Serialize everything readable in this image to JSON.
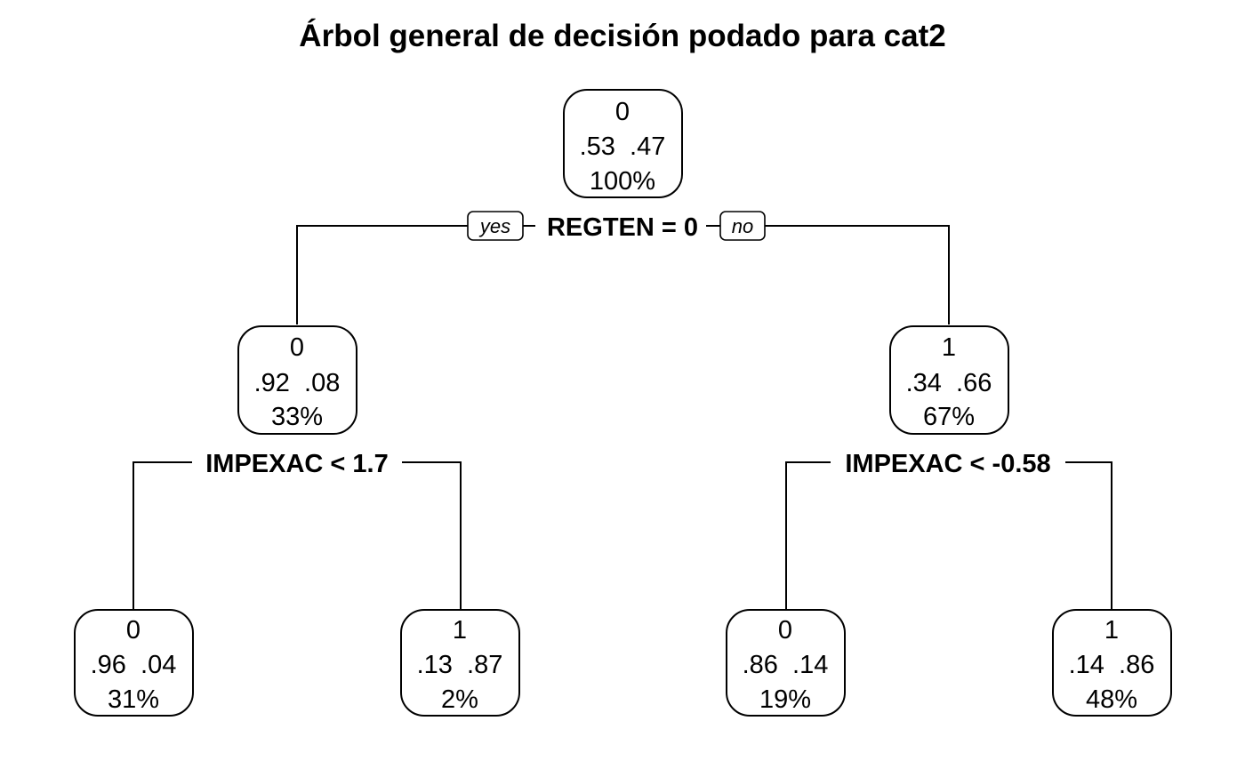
{
  "title": "Árbol general de decisión podado para cat2",
  "root_split": {
    "label": "REGTEN = 0",
    "yes_label": "yes",
    "no_label": "no"
  },
  "left_split": {
    "label": "IMPEXAC < 1.7"
  },
  "right_split": {
    "label": "IMPEXAC < -0.58"
  },
  "nodes": {
    "root": {
      "class": "0",
      "probs": ".53  .47",
      "pct": "100%"
    },
    "left": {
      "class": "0",
      "probs": ".92  .08",
      "pct": "33%"
    },
    "right": {
      "class": "1",
      "probs": ".34  .66",
      "pct": "67%"
    },
    "leaf_ll": {
      "class": "0",
      "probs": ".96  .04",
      "pct": "31%"
    },
    "leaf_lr": {
      "class": "1",
      "probs": ".13  .87",
      "pct": "2%"
    },
    "leaf_rl": {
      "class": "0",
      "probs": ".86  .14",
      "pct": "19%"
    },
    "leaf_rr": {
      "class": "1",
      "probs": ".14  .86",
      "pct": "48%"
    }
  }
}
